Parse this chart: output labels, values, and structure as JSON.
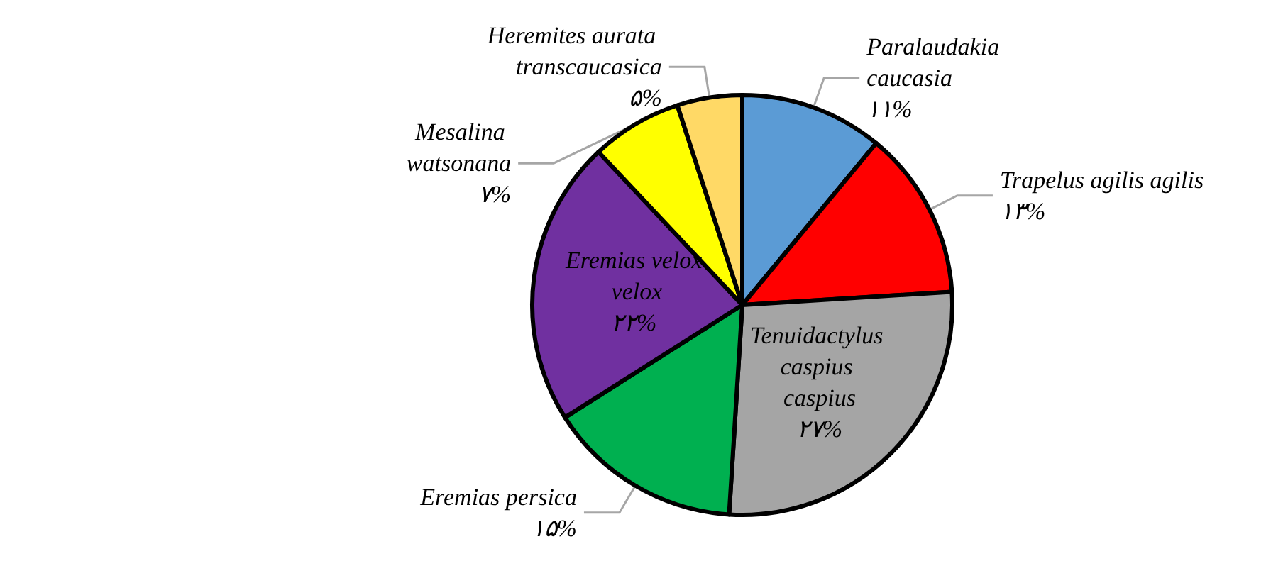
{
  "chart_data": {
    "type": "pie",
    "categories": [
      "Paralaudakia caucasia",
      "Trapelus agilis agilis",
      "Tenuidactylus caspius caspius",
      "Eremias persica",
      "Eremias velox velox",
      "Mesalina watsonana",
      "Heremites aurata transcaucasica"
    ],
    "values": [
      11,
      13,
      27,
      15,
      22,
      7,
      5
    ],
    "colors": [
      "#5b9bd5",
      "#ff0000",
      "#a5a5a5",
      "#00b050",
      "#7030a0",
      "#ffff00",
      "#ffd966"
    ],
    "value_labels": [
      "۱۱%",
      "۱۳%",
      "۲۷%",
      "۱۵%",
      "۲۲%",
      "۷%",
      "۵%"
    ],
    "legend": false
  }
}
